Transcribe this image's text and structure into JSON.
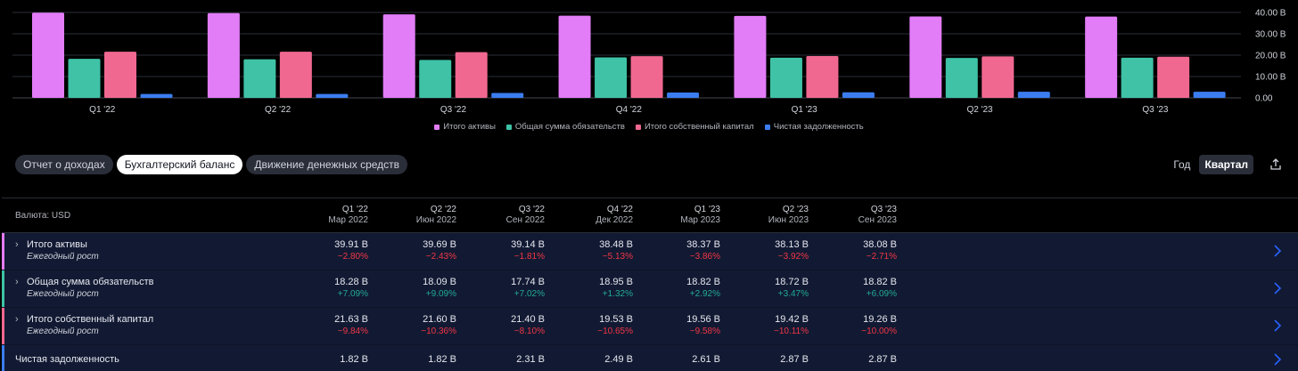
{
  "chart_data": {
    "type": "bar",
    "categories": [
      "Q1 '22",
      "Q2 '22",
      "Q3 '22",
      "Q4 '22",
      "Q1 '23",
      "Q2 '23",
      "Q3 '23"
    ],
    "series": [
      {
        "name": "Итого активы",
        "color": "#e27cf7",
        "values": [
          39.91,
          39.69,
          39.14,
          38.48,
          38.37,
          38.13,
          38.08
        ]
      },
      {
        "name": "Общая сумма обязательств",
        "color": "#3fc2a6",
        "values": [
          18.28,
          18.09,
          17.74,
          18.95,
          18.82,
          18.72,
          18.82
        ]
      },
      {
        "name": "Итого собственный капитал",
        "color": "#f06890",
        "values": [
          21.63,
          21.6,
          21.4,
          19.53,
          19.56,
          19.42,
          19.26
        ]
      },
      {
        "name": "Чистая задолженность",
        "color": "#3b7df0",
        "values": [
          1.82,
          1.82,
          2.31,
          2.49,
          2.61,
          2.87,
          2.87
        ]
      }
    ],
    "ylim": [
      0,
      40
    ],
    "yticks": [
      0,
      10,
      20,
      30,
      40
    ],
    "ytick_labels": [
      "0.00",
      "10.00 B",
      "20.00 B",
      "30.00 B",
      "40.00 B"
    ],
    "grid": true,
    "legend_position": "bottom-center"
  },
  "tabs": [
    {
      "label": "Отчет о доходах",
      "active": false
    },
    {
      "label": "Бухгалтерский баланс",
      "active": true
    },
    {
      "label": "Движение денежных средств",
      "active": false
    }
  ],
  "period": {
    "year_label": "Год",
    "quarter_label": "Квартал",
    "selected": "Квартал"
  },
  "share_icon": "share-icon",
  "table": {
    "currency_label": "Валюта: USD",
    "columns": [
      {
        "quarter": "Q1 '22",
        "date": "Мар 2022"
      },
      {
        "quarter": "Q2 '22",
        "date": "Июн 2022"
      },
      {
        "quarter": "Q3 '22",
        "date": "Сен 2022"
      },
      {
        "quarter": "Q4 '22",
        "date": "Дек 2022"
      },
      {
        "quarter": "Q1 '23",
        "date": "Мар 2023"
      },
      {
        "quarter": "Q2 '23",
        "date": "Июн 2023"
      },
      {
        "quarter": "Q3 '23",
        "date": "Сен 2023"
      }
    ],
    "rows": [
      {
        "title": "Итого активы",
        "subtitle": "Ежегодный рост",
        "color": "#e27cf7",
        "values": [
          "39.91 B",
          "39.69 B",
          "39.14 B",
          "38.48 B",
          "38.37 B",
          "38.13 B",
          "38.08 B"
        ],
        "growth": [
          "−2.80%",
          "−2.43%",
          "−1.81%",
          "−5.13%",
          "−3.86%",
          "−3.92%",
          "−2.71%"
        ]
      },
      {
        "title": "Общая сумма обязательств",
        "subtitle": "Ежегодный рост",
        "color": "#3fc2a6",
        "values": [
          "18.28 B",
          "18.09 B",
          "17.74 B",
          "18.95 B",
          "18.82 B",
          "18.72 B",
          "18.82 B"
        ],
        "growth": [
          "+7.09%",
          "+9.09%",
          "+7.02%",
          "+1.32%",
          "+2.92%",
          "+3.47%",
          "+6.09%"
        ]
      },
      {
        "title": "Итого собственный капитал",
        "subtitle": "Ежегодный рост",
        "color": "#f06890",
        "values": [
          "21.63 B",
          "21.60 B",
          "21.40 B",
          "19.53 B",
          "19.56 B",
          "19.42 B",
          "19.26 B"
        ],
        "growth": [
          "−9.84%",
          "−10.36%",
          "−8.10%",
          "−10.65%",
          "−9.58%",
          "−10.11%",
          "−10.00%"
        ]
      },
      {
        "title": "Чистая задолженность",
        "subtitle": "",
        "color": "#3b7df0",
        "values": [
          "1.82 B",
          "1.82 B",
          "2.31 B",
          "2.49 B",
          "2.61 B",
          "2.87 B",
          "2.87 B"
        ],
        "growth": []
      }
    ]
  }
}
